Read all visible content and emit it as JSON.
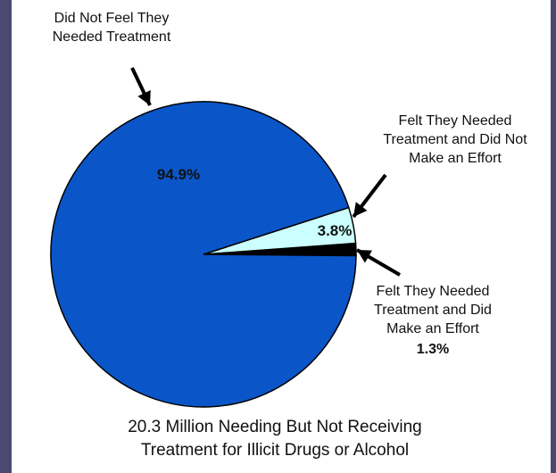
{
  "chart_data": {
    "type": "pie",
    "categories": [
      "Did Not Feel They Needed Treatment",
      "Felt They Needed Treatment and Did Not Make an Effort",
      "Felt They Needed Treatment and Did Make an Effort"
    ],
    "values": [
      94.9,
      3.8,
      1.3
    ],
    "value_labels": [
      "94.9%",
      "3.8%",
      "1.3%"
    ],
    "colors": [
      "#0a56c8",
      "#ccffff",
      "#000000"
    ],
    "annotations": {
      "slice0": "Did Not Feel They\nNeeded Treatment",
      "slice1": "Felt They Needed\nTreatment and Did Not\nMake an Effort",
      "slice2": "Felt They Needed\nTreatment and Did\nMake an Effort"
    },
    "caption": "20.3 Million Needing But Not Receiving\nTreatment for Illicit Drugs or Alcohol"
  }
}
